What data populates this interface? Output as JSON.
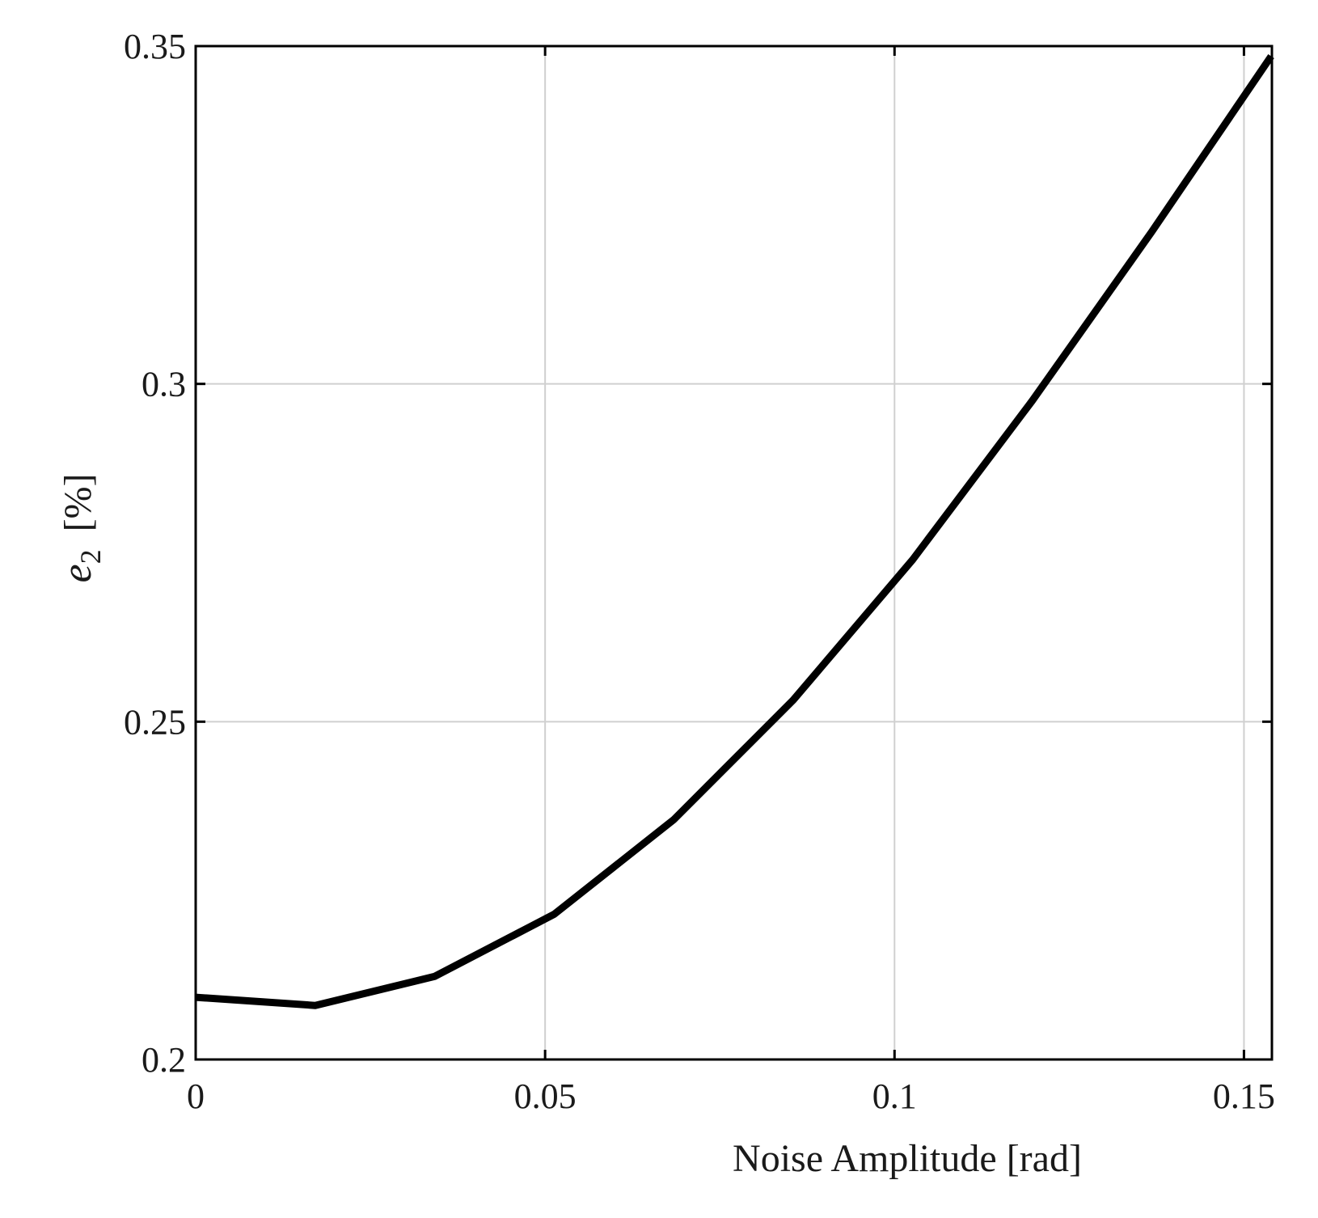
{
  "chart_data": {
    "type": "line",
    "xlabel": "Noise Amplitude [rad]",
    "ylabel": {
      "symbol": "e",
      "subscript": "2",
      "unit": "[%]"
    },
    "xlim": [
      0,
      0.154
    ],
    "ylim": [
      0.2,
      0.35
    ],
    "xticks": [
      0,
      0.05,
      0.1,
      0.15
    ],
    "xtick_labels": [
      "0",
      "0.05",
      "0.1",
      "0.15"
    ],
    "yticks": [
      0.2,
      0.25,
      0.3,
      0.35
    ],
    "ytick_labels": [
      "0.2",
      "0.25",
      "0.3",
      "0.35"
    ],
    "grid": true,
    "line_color": "#000000",
    "grid_color": "#d0d0d0",
    "series": [
      {
        "x": [
          0,
          0.0171,
          0.0342,
          0.0513,
          0.0684,
          0.0855,
          0.1026,
          0.1197,
          0.1368,
          0.1539
        ],
        "y": [
          0.2092,
          0.208,
          0.2123,
          0.2215,
          0.2355,
          0.2532,
          0.274,
          0.2975,
          0.3225,
          0.3485
        ]
      }
    ]
  }
}
